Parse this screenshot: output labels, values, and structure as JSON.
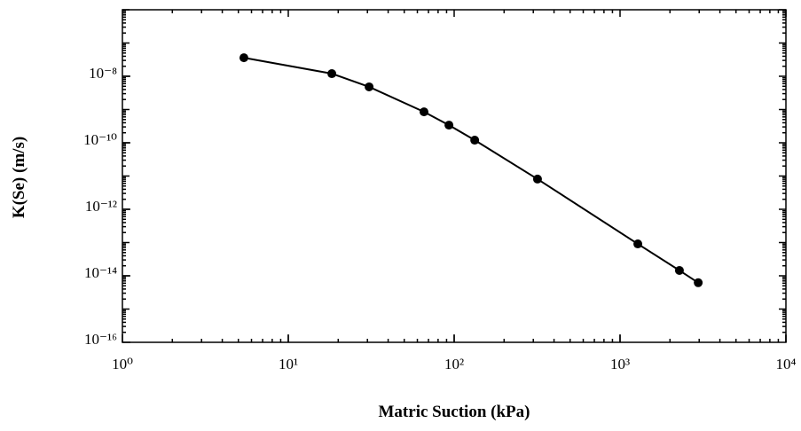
{
  "chart_data": {
    "type": "line",
    "log_x": true,
    "log_y": true,
    "minor_ticks": true,
    "x_label": "Matric Suction (kPa)",
    "y_label": "K(Se) (m/s)",
    "x": [
      5.4,
      18.3,
      30.7,
      65.8,
      93,
      133,
      318,
      1280,
      2280,
      2960
    ],
    "series": [
      {
        "color": "#000000",
        "markers": true,
        "values": [
          3.6e-08,
          1.2e-08,
          4.8e-09,
          8.5e-10,
          3.4e-10,
          1.2e-10,
          8.1e-12,
          9.1e-14,
          1.45e-14,
          6.2e-15
        ]
      }
    ],
    "xlim": [
      1,
      10000
    ],
    "xticks": [
      {
        "value": 1,
        "label": "10⁰"
      },
      {
        "value": 10,
        "label": "10¹"
      },
      {
        "value": 100,
        "label": "10²"
      },
      {
        "value": 1000,
        "label": "10³"
      },
      {
        "value": 10000,
        "label": "10⁴"
      }
    ],
    "ylim": [
      1e-16,
      1e-06
    ],
    "yticks": [
      {
        "value": 1e-16,
        "label": "10⁻¹⁶"
      },
      {
        "value": 1e-14,
        "label": "10⁻¹⁴"
      },
      {
        "value": 1e-12,
        "label": "10⁻¹²"
      },
      {
        "value": 1e-10,
        "label": "10⁻¹⁰"
      },
      {
        "value": 1e-08,
        "label": "10⁻⁸"
      }
    ]
  }
}
